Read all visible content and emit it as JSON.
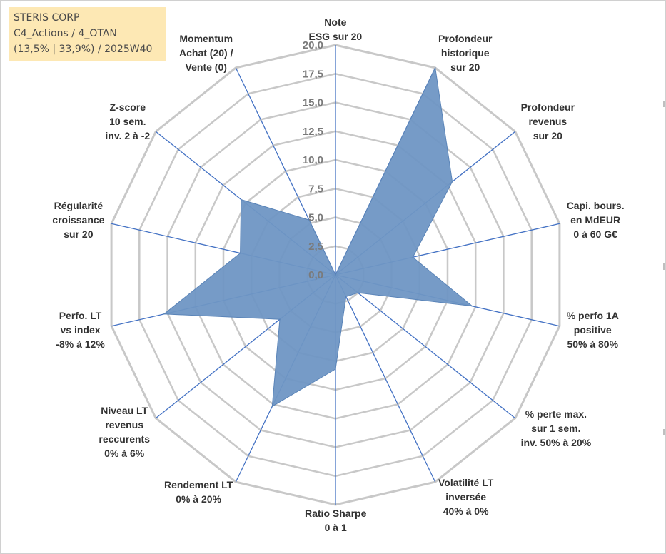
{
  "header": {
    "company": "STERIS CORP",
    "category": "C4_Actions / 4_OTAN",
    "stats": "(13,5% | 33,9%) / 2025W40"
  },
  "colors": {
    "fill": "#6f96c4",
    "stroke": "#5a84b8",
    "spoke": "#4472c4",
    "grid": "#c8c8c8",
    "header_bg": "#fde8b4"
  },
  "chart_data": {
    "type": "radar",
    "title": "STERIS CORP",
    "rmin": 0,
    "rmax": 20,
    "ticks": [
      0,
      2.5,
      5,
      7.5,
      10,
      12.5,
      15,
      17.5,
      20
    ],
    "tick_labels": [
      "0,0",
      "2,5",
      "5,0",
      "7,5",
      "10,0",
      "12,5",
      "15,0",
      "17,5",
      "20,0"
    ],
    "axes": [
      {
        "label": [
          "Note",
          "ESG sur 20"
        ],
        "value": 0
      },
      {
        "label": [
          "Profondeur",
          "historique",
          "sur 20"
        ],
        "value": 20
      },
      {
        "label": [
          "Profondeur",
          "revenus",
          "sur 20"
        ],
        "value": 13
      },
      {
        "label": [
          "Capi. bours.",
          "en MdEUR",
          "0 à 60 G€"
        ],
        "value": 6.9
      },
      {
        "label": [
          "% perfo 1A",
          "positive",
          "50% à 80%"
        ],
        "value": 12.2
      },
      {
        "label": [
          "% perte max.",
          "sur 1 sem.",
          "inv. 50% à 20%"
        ],
        "value": 2.5
      },
      {
        "label": [
          "Volatilité LT",
          "inversée",
          "40% à 0%"
        ],
        "value": 2.1
      },
      {
        "label": [
          "Ratio Sharpe",
          "0 à 1"
        ],
        "value": 8.2
      },
      {
        "label": [
          "Rendement LT",
          "0% à 20%"
        ],
        "value": 12.7
      },
      {
        "label": [
          "Niveau LT",
          "revenus",
          "reccurents",
          "0% à 6%"
        ],
        "value": 6.2
      },
      {
        "label": [
          "Perfo. LT",
          "vs index",
          "-8% à 12%"
        ],
        "value": 15.3
      },
      {
        "label": [
          "Régularité",
          "croissance",
          "sur 20"
        ],
        "value": 8.5
      },
      {
        "label": [
          "Z-score",
          "10 sem.",
          "inv. 2 à -2"
        ],
        "value": 10.5
      },
      {
        "label": [
          "Momentum",
          "Achat (20) /",
          "Vente (0)"
        ],
        "value": 5.3
      }
    ]
  }
}
